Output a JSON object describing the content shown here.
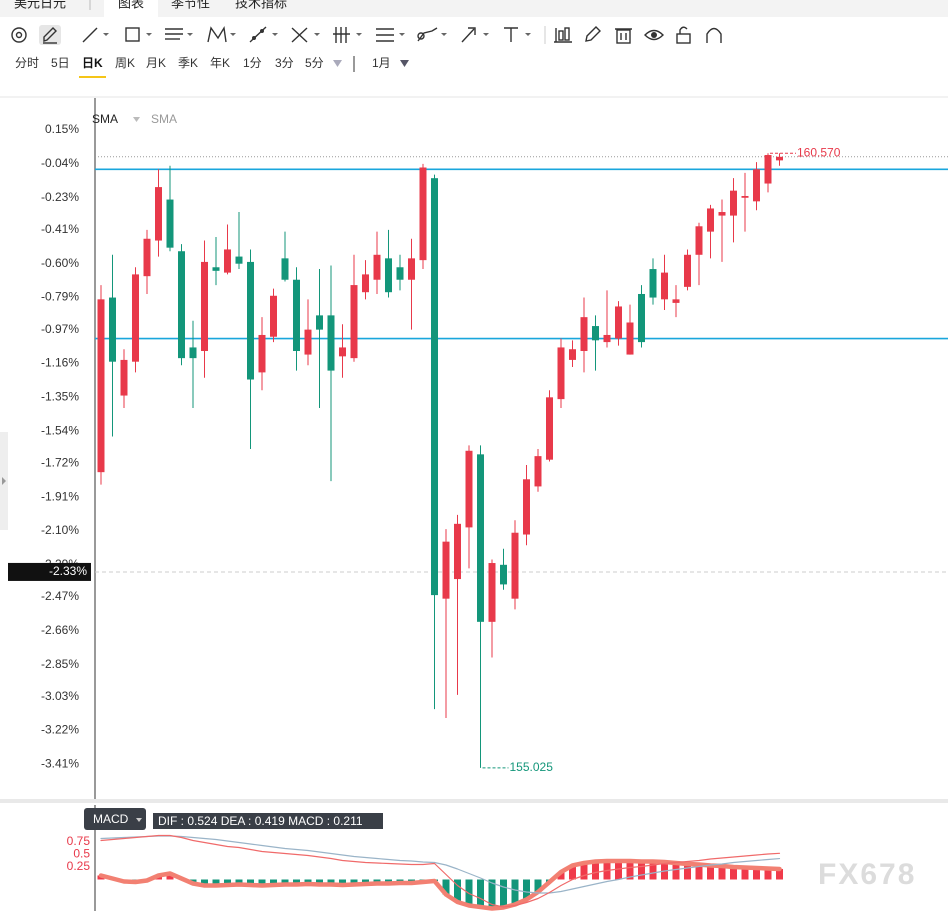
{
  "header": {
    "symbol": "美元日元",
    "tabs": [
      "图表",
      "季节性",
      "技术指标"
    ]
  },
  "periods": [
    "分时",
    "5日",
    "日K",
    "周K",
    "月K",
    "季K",
    "年K",
    "1分",
    "3分",
    "5分"
  ],
  "active_period": "日K",
  "range": "1月",
  "watermark": "FX678",
  "chart_data": [
    {
      "type": "candlestick",
      "indicator_labels": [
        "SMA",
        "SMA"
      ],
      "up_color": "#e8394a",
      "down_color": "#13967a",
      "open": [
        -1.77,
        -0.79,
        -1.34,
        -1.15,
        -0.67,
        -0.47,
        -0.24,
        -0.53,
        -1.07,
        -1.09,
        -0.62,
        -0.65,
        -0.56,
        -0.59,
        -1.21,
        -1.01,
        -0.57,
        -0.69,
        -1.11,
        -0.89,
        -0.89,
        -1.12,
        -1.13,
        -0.76,
        -0.69,
        -0.57,
        -0.62,
        -0.69,
        -0.58,
        -0.12,
        -2.48,
        -2.37,
        -2.08,
        -1.67,
        -2.61,
        -2.29,
        -2.48,
        -2.12,
        -1.85,
        -1.7,
        -1.36,
        -1.14,
        -1.09,
        -0.95,
        -1.04,
        -1.02,
        -1.11,
        -0.77,
        -0.63,
        -0.8,
        -0.82,
        -0.73,
        -0.55,
        -0.42,
        -0.33,
        -0.33,
        -0.23,
        -0.25,
        -0.15,
        -0.02
      ],
      "high": [
        -0.72,
        -0.55,
        -1.08,
        -0.62,
        -0.41,
        -0.07,
        -0.05,
        -0.49,
        -0.92,
        -0.47,
        -0.45,
        -0.38,
        -0.31,
        -0.52,
        -0.9,
        -0.74,
        -0.42,
        -0.62,
        -0.8,
        -0.63,
        -0.61,
        -0.94,
        -0.55,
        -0.58,
        -0.42,
        -0.41,
        -0.55,
        -0.46,
        -0.04,
        -0.1,
        -2.09,
        -2.01,
        -1.62,
        -1.62,
        -2.26,
        -2.2,
        -2.04,
        -1.73,
        -1.64,
        -1.31,
        -1.02,
        -1.03,
        -0.79,
        -0.89,
        -0.75,
        -0.81,
        -0.83,
        -0.72,
        -0.57,
        -0.55,
        -0.72,
        -0.52,
        -0.37,
        -0.27,
        -0.24,
        -0.12,
        -0.09,
        -0.03,
        0.02,
        0.02
      ],
      "low": [
        -1.84,
        -1.57,
        -1.41,
        -1.21,
        -0.77,
        -0.56,
        -0.53,
        -1.17,
        -1.41,
        -1.24,
        -0.72,
        -0.66,
        -0.63,
        -1.64,
        -1.31,
        -1.04,
        -0.7,
        -1.2,
        -1.17,
        -1.41,
        -1.82,
        -1.24,
        -1.15,
        -0.8,
        -0.77,
        -0.79,
        -0.75,
        -0.97,
        -0.63,
        -3.1,
        -3.15,
        -3.02,
        -2.31,
        -3.43,
        -2.81,
        -2.43,
        -2.54,
        -2.18,
        -1.88,
        -1.71,
        -1.41,
        -1.18,
        -1.21,
        -1.2,
        -1.07,
        -1.06,
        -1.11,
        -1.07,
        -0.83,
        -0.86,
        -0.9,
        -0.75,
        -0.72,
        -0.57,
        -0.59,
        -0.48,
        -0.42,
        -0.3,
        -0.2,
        -0.05
      ],
      "close": [
        -0.8,
        -1.15,
        -1.14,
        -0.66,
        -0.46,
        -0.17,
        -0.51,
        -1.13,
        -1.13,
        -0.59,
        -0.64,
        -0.52,
        -0.6,
        -1.25,
        -1.0,
        -0.78,
        -0.69,
        -1.09,
        -0.97,
        -0.97,
        -1.2,
        -1.07,
        -0.72,
        -0.66,
        -0.55,
        -0.76,
        -0.69,
        -0.57,
        -0.06,
        -2.46,
        -2.16,
        -2.06,
        -1.65,
        -2.61,
        -2.28,
        -2.4,
        -2.11,
        -1.81,
        -1.68,
        -1.35,
        -1.07,
        -1.08,
        -0.9,
        -1.03,
        -1.0,
        -0.84,
        -0.93,
        -1.04,
        -0.79,
        -0.65,
        -0.8,
        -0.55,
        -0.39,
        -0.29,
        -0.31,
        -0.19,
        -0.22,
        -0.07,
        0.01,
        0.0
      ],
      "ylim": [
        -3.61,
        0.33
      ],
      "yticks": [
        {
          "value": 0.15,
          "label": "0.15%"
        },
        {
          "value": -0.04,
          "label": "-0.04%"
        },
        {
          "value": -0.23,
          "label": "-0.23%"
        },
        {
          "value": -0.41,
          "label": "-0.41%"
        },
        {
          "value": -0.6,
          "label": "-0.60%"
        },
        {
          "value": -0.79,
          "label": "-0.79%"
        },
        {
          "value": -0.97,
          "label": "-0.97%"
        },
        {
          "value": -1.16,
          "label": "-1.16%"
        },
        {
          "value": -1.35,
          "label": "-1.35%"
        },
        {
          "value": -1.54,
          "label": "-1.54%"
        },
        {
          "value": -1.72,
          "label": "-1.72%"
        },
        {
          "value": -1.91,
          "label": "-1.91%"
        },
        {
          "value": -2.1,
          "label": "-2.10%"
        },
        {
          "value": -2.29,
          "label": "-2.29%"
        },
        {
          "value": -2.47,
          "label": "-2.47%"
        },
        {
          "value": -2.66,
          "label": "-2.66%"
        },
        {
          "value": -2.85,
          "label": "-2.85%"
        },
        {
          "value": -3.03,
          "label": "-3.03%"
        },
        {
          "value": -3.22,
          "label": "-3.22%"
        },
        {
          "value": -3.41,
          "label": "-3.41%"
        }
      ],
      "hlines": [
        -0.07,
        -1.02
      ],
      "hline_color": "#19a6dc",
      "crosshair": {
        "value": -2.33,
        "label": "-2.33%"
      },
      "max_label": "160.570",
      "min_label": "155.025"
    },
    {
      "type": "macd",
      "label": "MACD",
      "legend": "DIF : 0.524  DEA : 0.419  MACD : 0.211",
      "ylim": [
        -0.63,
        1.49
      ],
      "yticks": [
        0.25,
        0.5,
        0.75
      ],
      "tick_color": "#e8394a",
      "up_color": "#f03a4a",
      "down_color": "#13967a",
      "dif": {
        "color": "#f06a6a",
        "values": [
          0.78,
          0.8,
          0.82,
          0.84,
          0.86,
          0.88,
          0.88,
          0.84,
          0.78,
          0.74,
          0.7,
          0.66,
          0.64,
          0.6,
          0.56,
          0.54,
          0.52,
          0.5,
          0.48,
          0.45,
          0.42,
          0.38,
          0.36,
          0.34,
          0.33,
          0.32,
          0.31,
          0.3,
          0.3,
          0.32,
          0.1,
          -0.12,
          -0.28,
          -0.38,
          -0.5,
          -0.55,
          -0.52,
          -0.46,
          -0.38,
          -0.26,
          -0.12,
          0.0,
          0.08,
          0.14,
          0.18,
          0.21,
          0.24,
          0.26,
          0.29,
          0.32,
          0.34,
          0.36,
          0.38,
          0.41,
          0.43,
          0.45,
          0.47,
          0.49,
          0.51,
          0.524
        ]
      },
      "dea": {
        "color": "#9ab4c8",
        "values": [
          0.82,
          0.83,
          0.84,
          0.85,
          0.86,
          0.87,
          0.87,
          0.86,
          0.84,
          0.82,
          0.8,
          0.77,
          0.74,
          0.71,
          0.68,
          0.65,
          0.62,
          0.6,
          0.58,
          0.55,
          0.52,
          0.49,
          0.46,
          0.44,
          0.42,
          0.4,
          0.38,
          0.37,
          0.35,
          0.34,
          0.29,
          0.21,
          0.12,
          0.03,
          -0.07,
          -0.15,
          -0.21,
          -0.25,
          -0.27,
          -0.27,
          -0.24,
          -0.19,
          -0.14,
          -0.09,
          -0.04,
          0.0,
          0.05,
          0.09,
          0.13,
          0.17,
          0.2,
          0.23,
          0.26,
          0.29,
          0.31,
          0.34,
          0.36,
          0.38,
          0.4,
          0.419
        ]
      },
      "macd": {
        "color": "#f28072",
        "values": [
          0.08,
          0.02,
          -0.04,
          -0.05,
          -0.02,
          0.08,
          0.12,
          0.02,
          -0.08,
          -0.12,
          -0.12,
          -0.11,
          -0.1,
          -0.11,
          -0.12,
          -0.11,
          -0.1,
          -0.1,
          -0.09,
          -0.1,
          -0.1,
          -0.11,
          -0.1,
          -0.09,
          -0.08,
          -0.08,
          -0.07,
          -0.07,
          -0.05,
          -0.03,
          -0.3,
          -0.45,
          -0.52,
          -0.55,
          -0.58,
          -0.56,
          -0.5,
          -0.4,
          -0.25,
          -0.05,
          0.15,
          0.28,
          0.33,
          0.36,
          0.37,
          0.37,
          0.37,
          0.36,
          0.36,
          0.35,
          0.33,
          0.31,
          0.3,
          0.28,
          0.27,
          0.25,
          0.24,
          0.23,
          0.22,
          0.211
        ]
      }
    }
  ]
}
